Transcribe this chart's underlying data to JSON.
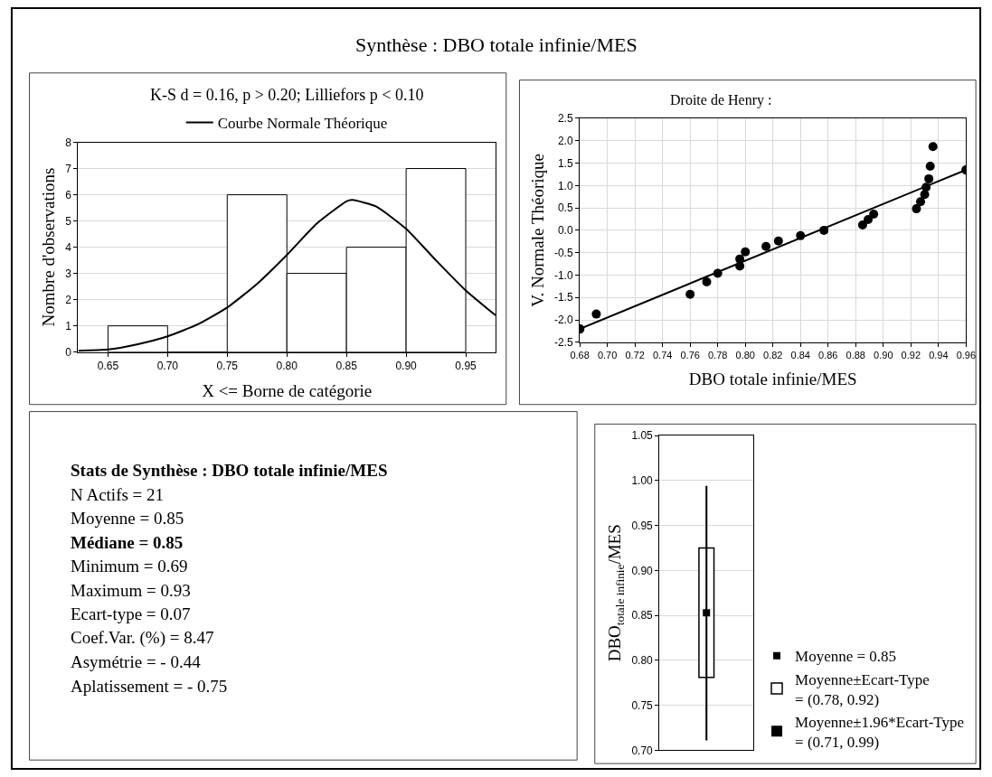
{
  "chart_data": [
    {
      "type": "histogram",
      "title": "Synthèse : DBO totale infinie/MES",
      "subtitle": "K-S d = 0.16, p > 0.20; Lilliefors p < 0.10",
      "xlabel": "X <= Borne de catégorie",
      "ylabel": "Nombre d'observations",
      "bins": [
        0.65,
        0.7,
        0.75,
        0.8,
        0.85,
        0.9,
        0.95
      ],
      "values": [
        1,
        0,
        6,
        3,
        4,
        7
      ],
      "color": "#ffffff",
      "xlim": [
        0.625,
        0.975
      ],
      "xticks": [
        {
          "value": 0.65,
          "label": "0.65"
        },
        {
          "value": 0.7,
          "label": "0.70"
        },
        {
          "value": 0.75,
          "label": "0.75"
        },
        {
          "value": 0.8,
          "label": "0.80"
        },
        {
          "value": 0.85,
          "label": "0.85"
        },
        {
          "value": 0.9,
          "label": "0.90"
        },
        {
          "value": 0.95,
          "label": "0.95"
        }
      ],
      "ylim": [
        0,
        8
      ],
      "yticks": [
        0,
        1,
        2,
        3,
        4,
        5,
        6,
        7,
        8
      ],
      "grid": "y",
      "legend": "top",
      "series": [
        {
          "type": "line",
          "name": "Courbe Normale Théorique",
          "color": "#000000",
          "x": [
            0.625,
            0.65,
            0.675,
            0.7,
            0.725,
            0.75,
            0.775,
            0.8,
            0.825,
            0.85,
            0.855,
            0.875,
            0.9,
            0.925,
            0.95,
            0.975
          ],
          "values": [
            0.05,
            0.1,
            0.3,
            0.6,
            1.05,
            1.7,
            2.6,
            3.7,
            4.9,
            5.75,
            5.8,
            5.55,
            4.7,
            3.5,
            2.35,
            1.4
          ]
        }
      ]
    },
    {
      "type": "scatter",
      "title": "Droite de Henry :",
      "xlabel": "DBO totale infinie/MES",
      "ylabel": "V. Normale Théorique",
      "marker": "circle",
      "grid": true,
      "xlim": [
        0.68,
        0.96
      ],
      "xticks": [
        {
          "value": 0.68,
          "label": "0.68"
        },
        {
          "value": 0.7,
          "label": "0.70"
        },
        {
          "value": 0.72,
          "label": "0.72"
        },
        {
          "value": 0.74,
          "label": "0.74"
        },
        {
          "value": 0.76,
          "label": "0.76"
        },
        {
          "value": 0.78,
          "label": "0.78"
        },
        {
          "value": 0.8,
          "label": "0.80"
        },
        {
          "value": 0.82,
          "label": "0.82"
        },
        {
          "value": 0.84,
          "label": "0.84"
        },
        {
          "value": 0.86,
          "label": "0.86"
        },
        {
          "value": 0.88,
          "label": "0.88"
        },
        {
          "value": 0.9,
          "label": "0.90"
        },
        {
          "value": 0.92,
          "label": "0.92"
        },
        {
          "value": 0.94,
          "label": "0.94"
        },
        {
          "value": 0.96,
          "label": "0.96"
        }
      ],
      "ylim": [
        -2.5,
        2.5
      ],
      "yticks": [
        {
          "value": -2.5,
          "label": "-2.5"
        },
        {
          "value": -2.0,
          "label": "-2.0"
        },
        {
          "value": -1.5,
          "label": "-1.5"
        },
        {
          "value": -1.0,
          "label": "-1.0"
        },
        {
          "value": -0.5,
          "label": "-0.5"
        },
        {
          "value": 0.0,
          "label": "0.0"
        },
        {
          "value": 0.5,
          "label": "0.5"
        },
        {
          "value": 1.0,
          "label": "1.0"
        },
        {
          "value": 1.5,
          "label": "1.5"
        },
        {
          "value": 2.0,
          "label": "2.0"
        },
        {
          "value": 2.5,
          "label": "2.5"
        }
      ],
      "series": [
        {
          "type": "scatter",
          "color": "#000000",
          "x": [
            0.692,
            0.76,
            0.772,
            0.78,
            0.796,
            0.796,
            0.8,
            0.815,
            0.824,
            0.84,
            0.857,
            0.885,
            0.889,
            0.893,
            0.924,
            0.927,
            0.93,
            0.931,
            0.933,
            0.934,
            0.936
          ],
          "values": [
            -1.87,
            -1.43,
            -1.15,
            -0.96,
            -0.8,
            -0.64,
            -0.48,
            -0.36,
            -0.24,
            -0.12,
            0.0,
            0.12,
            0.24,
            0.36,
            0.48,
            0.64,
            0.8,
            0.96,
            1.15,
            1.43,
            1.87
          ]
        },
        {
          "type": "line",
          "color": "#000000",
          "x": [
            0.68,
            0.96
          ],
          "values": [
            -2.2,
            1.35
          ]
        }
      ]
    },
    {
      "type": "other",
      "title": "Stats de Synthèse : DBO totale infinie/MES",
      "annotations": [
        "N Actifs = 21",
        "Moyenne = 0.85",
        "Médiane = 0.85",
        "Minimum = 0.69",
        "Maximum = 0.93",
        "Ecart-type = 0.07",
        "Coef.Var. (%) = 8.47",
        "Asymétrie = - 0.44",
        "Aplatissement = - 0.75"
      ]
    },
    {
      "type": "bar",
      "categories": [
        null
      ],
      "ylabel": "DBO$_{totale infinie}$/MES",
      "ylim": [
        0.7,
        1.05
      ],
      "yticks": [
        {
          "value": 0.7,
          "label": "0.70"
        },
        {
          "value": 0.75,
          "label": "0.75"
        },
        {
          "value": 0.8,
          "label": "0.80"
        },
        {
          "value": 0.85,
          "label": "0.85"
        },
        {
          "value": 0.9,
          "label": "0.90"
        },
        {
          "value": 0.95,
          "label": "0.95"
        },
        {
          "value": 1.0,
          "label": "1.00"
        },
        {
          "value": 1.05,
          "label": "1.05"
        }
      ],
      "grid": "y",
      "tick_labels": "y",
      "legend": "bottom right",
      "series": [
        {
          "type": "scatter",
          "name": "Moyenne = 0.85",
          "color": "#000000",
          "marker": "square",
          "values": [
            0.853
          ]
        },
        {
          "type": "bar",
          "name": "Moyenne±Ecart-Type\n= (0.78, 0.92)",
          "color": "#ffffff",
          "base": [
            0.781
          ],
          "values": [
            0.144
          ]
        },
        {
          "type": "bar",
          "name": "Moyenne±1.96*Ecart-Type\n= (0.71, 0.99)",
          "color": "#000000",
          "base": [
            0.711
          ],
          "values": [
            0.283
          ]
        }
      ]
    }
  ]
}
